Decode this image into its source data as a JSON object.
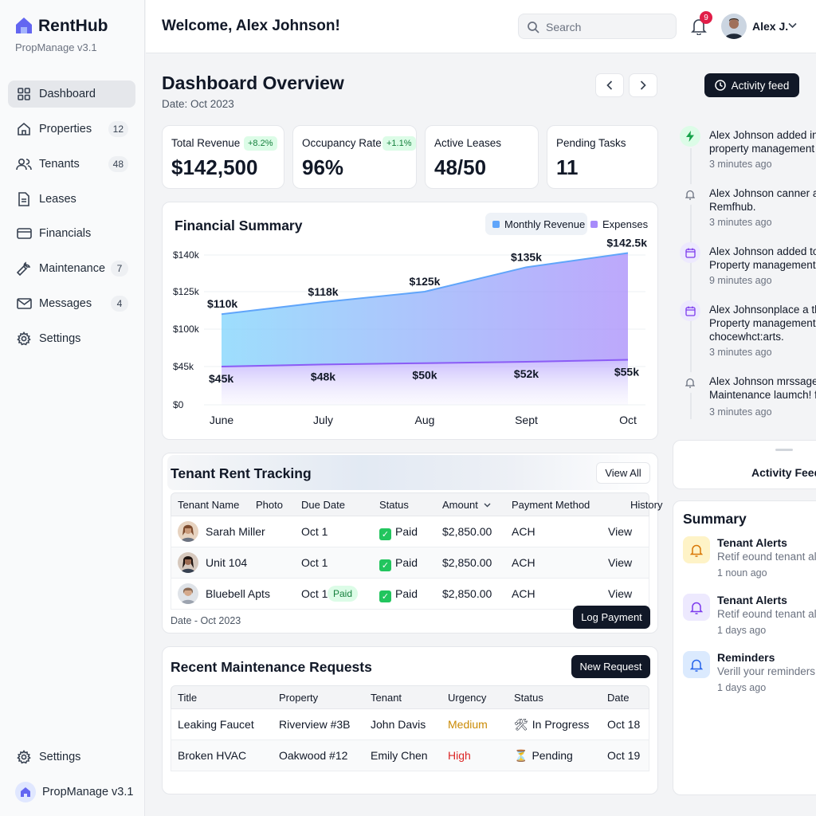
{
  "brand": {
    "name": "RentHub",
    "version": "PropManage v3.1"
  },
  "sidebar": {
    "items": [
      {
        "label": "Dashboard",
        "icon": "grid-icon",
        "count": "",
        "active": true
      },
      {
        "label": "Properties",
        "icon": "home-icon",
        "count": "12"
      },
      {
        "label": "Tenants",
        "icon": "users-icon",
        "count": "48"
      },
      {
        "label": "Leases",
        "icon": "document-icon",
        "count": ""
      },
      {
        "label": "Financials",
        "icon": "credit-card-icon",
        "count": ""
      },
      {
        "label": "Maintenance",
        "icon": "wrench-icon",
        "count": "7"
      },
      {
        "label": "Messages",
        "icon": "mail-icon",
        "count": "4"
      },
      {
        "label": "Settings",
        "icon": "gear-icon",
        "count": ""
      }
    ],
    "footer_settings": "Settings",
    "footer_version": "PropManage v3.1"
  },
  "topbar": {
    "welcome": "Welcome, Alex Johnson!",
    "search_placeholder": "Search",
    "notifications": "9",
    "user": "Alex J."
  },
  "page": {
    "title": "Dashboard Overview",
    "date": "Date: Oct 2023",
    "activity_button": "Activity feed"
  },
  "stats": [
    {
      "label": "Total Revenue",
      "value": "$142,500",
      "change": "+8.2%"
    },
    {
      "label": "Occupancy Rate",
      "value": "96%",
      "change": "+1.1%"
    },
    {
      "label": "Active Leases",
      "value": "48/50",
      "change": ""
    },
    {
      "label": "Pending Tasks",
      "value": "11",
      "change": ""
    }
  ],
  "financial": {
    "title": "Financial Summary",
    "legend_revenue": "Monthly Revenue",
    "legend_expenses": "Expenses"
  },
  "chart_data": {
    "type": "area",
    "categories": [
      "June",
      "July",
      "Aug",
      "Sept",
      "Oct"
    ],
    "series": [
      {
        "name": "Monthly Revenue",
        "values": [
          110,
          118,
          125,
          135,
          142.5
        ],
        "labels": [
          "$110k",
          "$118k",
          "$125k",
          "$135k",
          "$142.5k"
        ],
        "color": "#60a5fa"
      },
      {
        "name": "Expenses",
        "values": [
          45,
          48,
          50,
          52,
          55
        ],
        "labels": [
          "$45k",
          "$48k",
          "$50k",
          "$52k",
          "$55k"
        ],
        "color": "#a78bfa"
      }
    ],
    "yticks": [
      "$140k",
      "$125k",
      "$100k",
      "$45k",
      "$0"
    ],
    "legend": "top-right",
    "grid": true
  },
  "rent": {
    "title": "Tenant Rent Tracking",
    "view_all": "View All",
    "columns": [
      "Tenant Name",
      "Photo",
      "Due Date",
      "Status",
      "Amount",
      "Payment Method",
      "History"
    ],
    "rows": [
      {
        "name": "Sarah Miller",
        "due": "Oct 1",
        "pill": "",
        "status": "Paid",
        "amount": "$2,850.00",
        "method": "ACH",
        "history": "View"
      },
      {
        "name": "Unit 104",
        "due": "Oct 1",
        "pill": "",
        "status": "Paid",
        "amount": "$2,850.00",
        "method": "ACH",
        "history": "View"
      },
      {
        "name": "Bluebell Apts",
        "due": "Oct 1",
        "pill": "Paid",
        "status": "Paid",
        "amount": "$2,850.00",
        "method": "ACH",
        "history": "View"
      }
    ],
    "footer_date": "Date - Oct 2023",
    "log_payment": "Log Payment"
  },
  "maintenance": {
    "title": "Recent Maintenance Requests",
    "new_request": "New Request",
    "columns": [
      "Title",
      "Property",
      "Tenant",
      "Urgency",
      "Status",
      "Date"
    ],
    "rows": [
      {
        "title": "Leaking Faucet",
        "property": "Riverview #3B",
        "tenant": "John Davis",
        "urgency": "Medium",
        "urgency_color": "#ca8a04",
        "status_icon": "🛠",
        "status": "In Progress",
        "date": "Oct 18"
      },
      {
        "title": "Broken HVAC",
        "property": "Oakwood #12",
        "tenant": "Emily Chen",
        "urgency": "High",
        "urgency_color": "#dc2626",
        "status_icon": "⏳",
        "status": "Pending",
        "date": "Oct 19"
      }
    ]
  },
  "feed": {
    "items": [
      {
        "icon": "bolt-icon",
        "line1": "Alex Johnson added in",
        "line2": "property management",
        "line3": "",
        "time": "3 minutes ago"
      },
      {
        "icon": "bell-icon",
        "line1": "Alex Johnson canner a",
        "line2": "Remfhub.",
        "line3": "",
        "time": "3 minutes ago"
      },
      {
        "icon": "calendar-icon",
        "line1": "Alex Johnson added to",
        "line2": "Property management",
        "line3": "",
        "time": "9 minutes ago"
      },
      {
        "icon": "calendar-icon",
        "line1": "Alex Johnsonplace a th",
        "line2": "Property management",
        "line3": "chocewhct:arts.",
        "time": "3 minutes ago"
      },
      {
        "icon": "bell-icon",
        "line1": "Alex Johnson mrssage",
        "line2": "Maintenance laumch! f",
        "line3": "",
        "time": "3 minutes ago"
      }
    ],
    "footer_title": "Activity Feed"
  },
  "summary": {
    "title": "Summary",
    "items": [
      {
        "icon": "bell-icon",
        "title": "Tenant Alerts",
        "desc": "Retif eound tenant alo",
        "time": "1 noun ago"
      },
      {
        "icon": "bell-icon",
        "title": "Tenant Alerts",
        "desc": "Retif eound tenant alo",
        "time": "1 days ago"
      },
      {
        "icon": "bell-icon",
        "title": "Reminders",
        "desc": "Verill your reminders",
        "time": "1 days ago"
      }
    ]
  }
}
